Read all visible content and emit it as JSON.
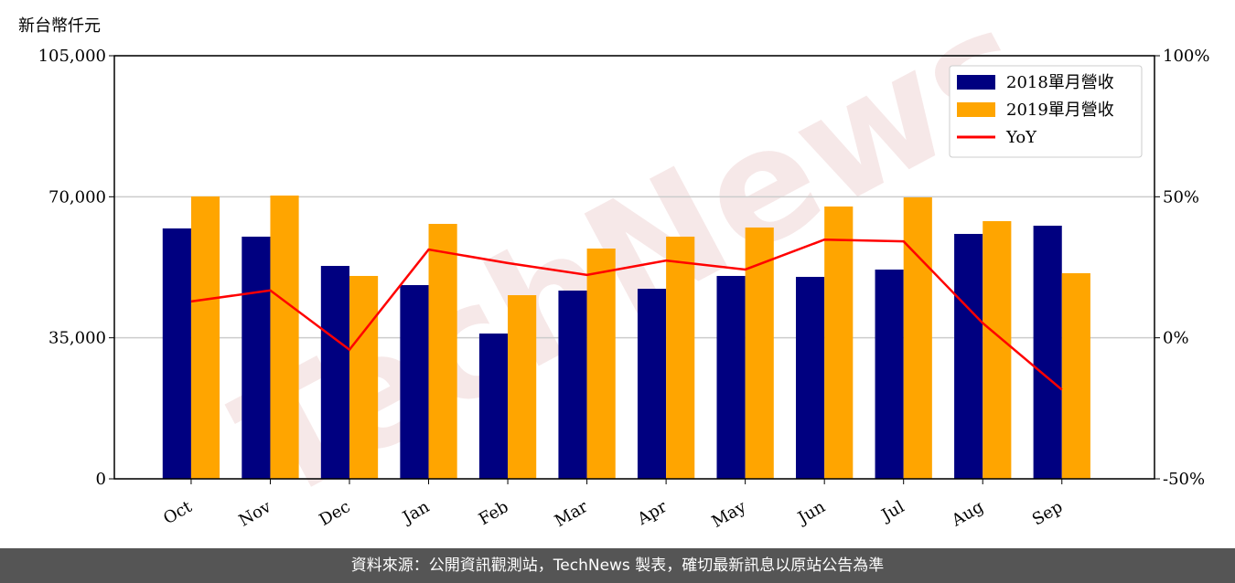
{
  "chart_data": {
    "type": "bar",
    "y_label": "新台幣仟元",
    "watermark": "TechNews",
    "categories": [
      "Oct",
      "Nov",
      "Dec",
      "Jan",
      "Feb",
      "Mar",
      "Apr",
      "May",
      "Jun",
      "Jul",
      "Aug",
      "Sep"
    ],
    "series": [
      {
        "name": "2018單月營收",
        "color": "#000080",
        "values": [
          62140,
          60100,
          52840,
          48080,
          36060,
          46720,
          47170,
          50350,
          50120,
          51930,
          60780,
          62820
        ]
      },
      {
        "name": "2019單月營收",
        "color": "#ffa500",
        "values": [
          70080,
          70300,
          50350,
          63270,
          45580,
          57150,
          60100,
          62370,
          67580,
          69850,
          63950,
          51030
        ]
      },
      {
        "name": "YoY",
        "type": "line",
        "axis": "y2",
        "color": "#ff0000",
        "values": [
          12.9,
          16.8,
          -4.2,
          31.3,
          26.5,
          22.3,
          27.4,
          24.2,
          34.8,
          34.2,
          5.2,
          -18.4
        ]
      }
    ],
    "ylim": [
      0,
      105000
    ],
    "yticks": [
      0,
      {
        "value": 35000,
        "label": "35,000"
      },
      {
        "value": 70000,
        "label": "70,000"
      },
      {
        "value": 105000,
        "label": "105,000"
      }
    ],
    "y2lim": [
      -50,
      100
    ],
    "y2ticks": [
      {
        "value": -50,
        "label": "-50%"
      },
      {
        "value": 0,
        "label": "0%"
      },
      {
        "value": 50,
        "label": "50%"
      },
      {
        "value": 100,
        "label": "100%"
      }
    ],
    "grid": true,
    "legend": "upper right"
  },
  "footer": "資料來源：公開資訊觀測站，TechNews 製表，確切最新訊息以原站公告為準"
}
